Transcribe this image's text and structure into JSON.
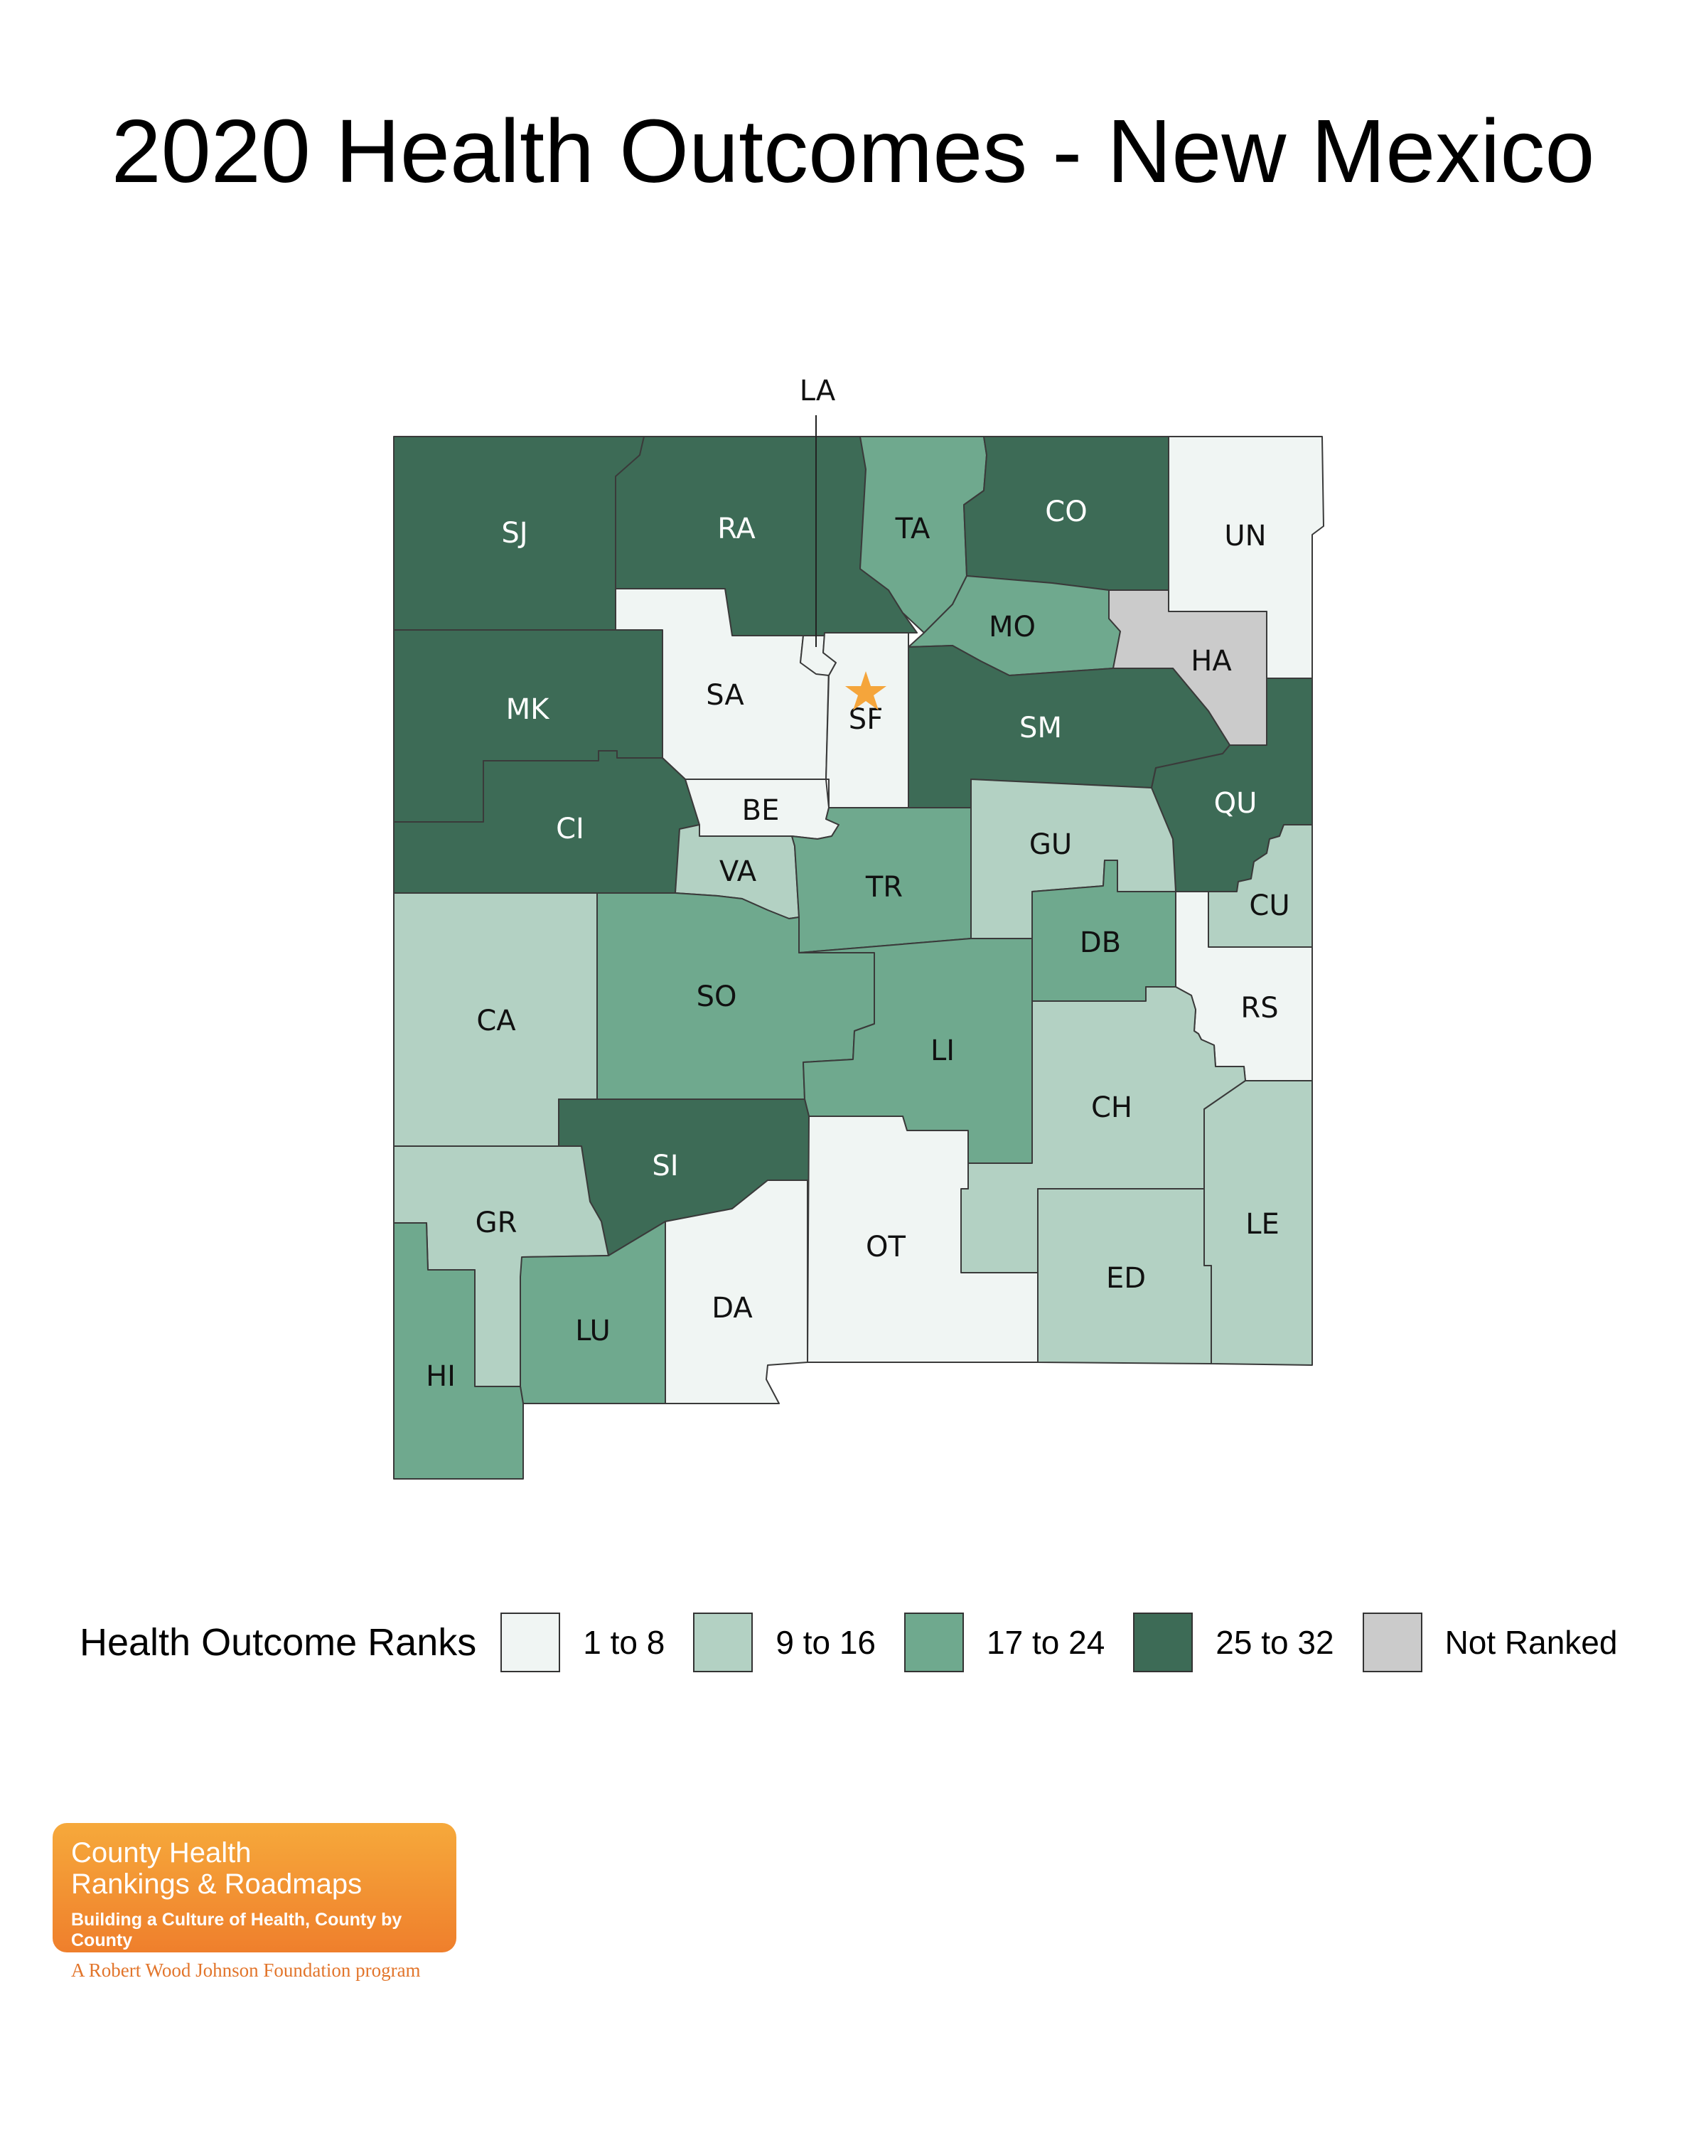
{
  "title": "2020 Health Outcomes - New Mexico",
  "colors": {
    "rank_1_8": "#f0f5f3",
    "rank_9_16": "#b3d1c3",
    "rank_17_24": "#6fa98e",
    "rank_25_32": "#3d6b56",
    "not_ranked": "#cbcbcb",
    "star": "#f5a53b"
  },
  "legend": {
    "title": "Health Outcome Ranks",
    "items": [
      {
        "label": "1 to 8",
        "color": "#f0f5f3"
      },
      {
        "label": "9 to 16",
        "color": "#b3d1c3"
      },
      {
        "label": "17 to 24",
        "color": "#6fa98e"
      },
      {
        "label": "25 to 32",
        "color": "#3d6b56"
      },
      {
        "label": "Not Ranked",
        "color": "#cbcbcb"
      }
    ]
  },
  "counties": [
    {
      "code": "SJ",
      "rank_group": "25 to 32"
    },
    {
      "code": "RA",
      "rank_group": "25 to 32"
    },
    {
      "code": "TA",
      "rank_group": "17 to 24"
    },
    {
      "code": "CO",
      "rank_group": "25 to 32"
    },
    {
      "code": "UN",
      "rank_group": "1 to 8"
    },
    {
      "code": "MO",
      "rank_group": "17 to 24"
    },
    {
      "code": "HA",
      "rank_group": "Not Ranked"
    },
    {
      "code": "LA",
      "rank_group": "1 to 8"
    },
    {
      "code": "MK",
      "rank_group": "25 to 32"
    },
    {
      "code": "SA",
      "rank_group": "1 to 8"
    },
    {
      "code": "SF",
      "rank_group": "1 to 8"
    },
    {
      "code": "SM",
      "rank_group": "25 to 32"
    },
    {
      "code": "QU",
      "rank_group": "25 to 32"
    },
    {
      "code": "CI",
      "rank_group": "25 to 32"
    },
    {
      "code": "BE",
      "rank_group": "1 to 8"
    },
    {
      "code": "VA",
      "rank_group": "9 to 16"
    },
    {
      "code": "TR",
      "rank_group": "17 to 24"
    },
    {
      "code": "GU",
      "rank_group": "9 to 16"
    },
    {
      "code": "CU",
      "rank_group": "9 to 16"
    },
    {
      "code": "DB",
      "rank_group": "17 to 24"
    },
    {
      "code": "RS",
      "rank_group": "1 to 8"
    },
    {
      "code": "CA",
      "rank_group": "9 to 16"
    },
    {
      "code": "SO",
      "rank_group": "17 to 24"
    },
    {
      "code": "LI",
      "rank_group": "17 to 24"
    },
    {
      "code": "CH",
      "rank_group": "9 to 16"
    },
    {
      "code": "SI",
      "rank_group": "25 to 32"
    },
    {
      "code": "GR",
      "rank_group": "9 to 16"
    },
    {
      "code": "OT",
      "rank_group": "1 to 8"
    },
    {
      "code": "LE",
      "rank_group": "9 to 16"
    },
    {
      "code": "ED",
      "rank_group": "9 to 16"
    },
    {
      "code": "DA",
      "rank_group": "1 to 8"
    },
    {
      "code": "LU",
      "rank_group": "17 to 24"
    },
    {
      "code": "HI",
      "rank_group": "17 to 24"
    }
  ],
  "capital_marker": "star",
  "logo": {
    "line1": "County Health",
    "line2": "Rankings & Roadmaps",
    "tagline": "Building a Culture of Health, County by County",
    "program": "A Robert Wood Johnson Foundation program"
  }
}
